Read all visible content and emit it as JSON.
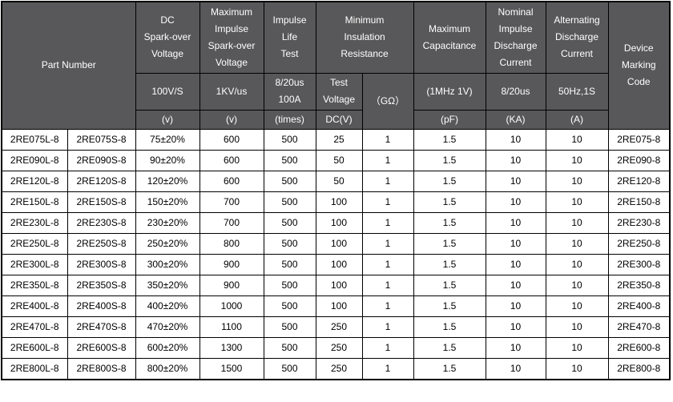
{
  "colors": {
    "header_bg": "#58585a",
    "header_text": "#ffffff",
    "border": "#000000",
    "cell_bg": "#ffffff",
    "cell_text": "#000000"
  },
  "table": {
    "header": {
      "part_number": "Part Number",
      "device_marking": "Device\nMarking\nCode",
      "groups": [
        {
          "title": "DC\nSpark-over\nVoltage",
          "condition": "100V/S",
          "unit": "(v)"
        },
        {
          "title": "Maximum\nImpulse\nSpark-over\nVoltage",
          "condition": "1KV/us",
          "unit": "(v)"
        },
        {
          "title": "Impulse\nLife\nTest",
          "condition": "8/20us\n100A",
          "unit": "(times)"
        },
        {
          "title": "Minimum\nInsulation\nResistance",
          "condition": "Test\nVoltage",
          "condition2": "（GΩ）",
          "unit": "DC(V)"
        },
        {
          "title": "Maximum\nCapacitance",
          "condition": "(1MHz 1V)",
          "unit": "(pF)"
        },
        {
          "title": "Nominal\nImpulse\nDischarge\nCurrent",
          "condition": "8/20us",
          "unit": "(KA)"
        },
        {
          "title": "Alternating\nDischarge\nCurrent",
          "condition": "50Hz,1S",
          "unit": "(A)"
        }
      ]
    },
    "rows": [
      [
        "2RE075L-8",
        "2RE075S-8",
        "75±20%",
        "600",
        "500",
        "25",
        "1",
        "1.5",
        "10",
        "10",
        "2RE075-8"
      ],
      [
        "2RE090L-8",
        "2RE090S-8",
        "90±20%",
        "600",
        "500",
        "50",
        "1",
        "1.5",
        "10",
        "10",
        "2RE090-8"
      ],
      [
        "2RE120L-8",
        "2RE120S-8",
        "120±20%",
        "600",
        "500",
        "50",
        "1",
        "1.5",
        "10",
        "10",
        "2RE120-8"
      ],
      [
        "2RE150L-8",
        "2RE150S-8",
        "150±20%",
        "700",
        "500",
        "100",
        "1",
        "1.5",
        "10",
        "10",
        "2RE150-8"
      ],
      [
        "2RE230L-8",
        "2RE230S-8",
        "230±20%",
        "700",
        "500",
        "100",
        "1",
        "1.5",
        "10",
        "10",
        "2RE230-8"
      ],
      [
        "2RE250L-8",
        "2RE250S-8",
        "250±20%",
        "800",
        "500",
        "100",
        "1",
        "1.5",
        "10",
        "10",
        "2RE250-8"
      ],
      [
        "2RE300L-8",
        "2RE300S-8",
        "300±20%",
        "900",
        "500",
        "100",
        "1",
        "1.5",
        "10",
        "10",
        "2RE300-8"
      ],
      [
        "2RE350L-8",
        "2RE350S-8",
        "350±20%",
        "900",
        "500",
        "100",
        "1",
        "1.5",
        "10",
        "10",
        "2RE350-8"
      ],
      [
        "2RE400L-8",
        "2RE400S-8",
        "400±20%",
        "1000",
        "500",
        "100",
        "1",
        "1.5",
        "10",
        "10",
        "2RE400-8"
      ],
      [
        "2RE470L-8",
        "2RE470S-8",
        "470±20%",
        "1100",
        "500",
        "250",
        "1",
        "1.5",
        "10",
        "10",
        "2RE470-8"
      ],
      [
        "2RE600L-8",
        "2RE600S-8",
        "600±20%",
        "1300",
        "500",
        "250",
        "1",
        "1.5",
        "10",
        "10",
        "2RE600-8"
      ],
      [
        "2RE800L-8",
        "2RE800S-8",
        "800±20%",
        "1500",
        "500",
        "250",
        "1",
        "1.5",
        "10",
        "10",
        "2RE800-8"
      ]
    ]
  }
}
